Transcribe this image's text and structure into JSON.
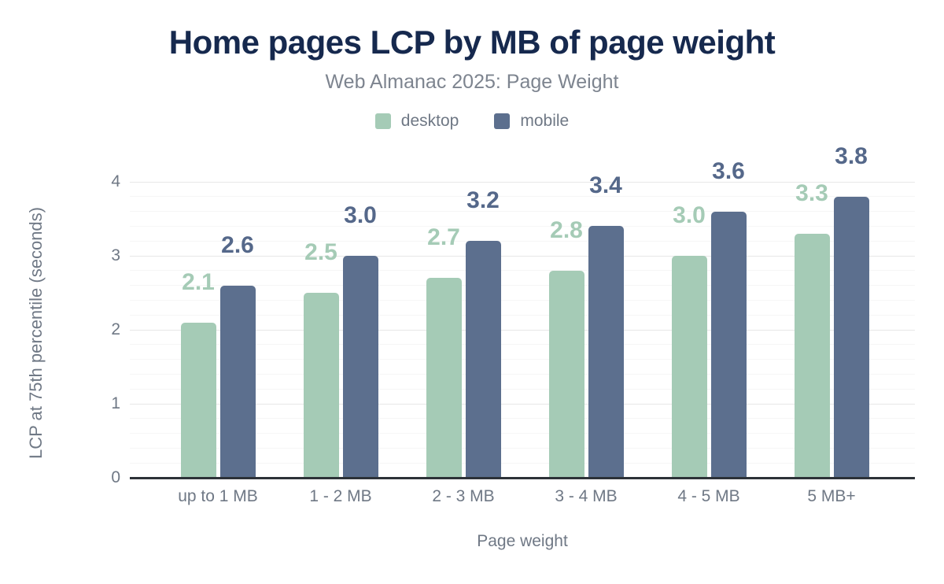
{
  "chart_data": {
    "type": "bar",
    "title": "Home pages LCP by MB of page weight",
    "subtitle": "Web Almanac 2025: Page Weight",
    "xlabel": "Page weight",
    "ylabel": "LCP at 75th percentile (seconds)",
    "categories": [
      "up to 1 MB",
      "1 - 2 MB",
      "2 - 3 MB",
      "3 - 4 MB",
      "4 - 5 MB",
      "5 MB+"
    ],
    "series": [
      {
        "name": "desktop",
        "color": "#a5cbb6",
        "label_color": "#a5cbb6",
        "values": [
          2.1,
          2.5,
          2.7,
          2.8,
          3.0,
          3.3
        ]
      },
      {
        "name": "mobile",
        "color": "#5c6f8e",
        "label_color": "#55688a",
        "values": [
          2.6,
          3.0,
          3.2,
          3.4,
          3.6,
          3.8
        ]
      }
    ],
    "ylim": [
      0,
      4
    ],
    "yticks": [
      0,
      1,
      2,
      3,
      4
    ],
    "grid": {
      "minor_step": 0.2,
      "majors_every": 5,
      "minor_color": "#f6f6f6",
      "major_color": "#e7e7e7"
    },
    "value_label_decimals": 1,
    "legend_position": "top-center",
    "colors": {
      "title": "#16294e",
      "subtitle": "#7d848f",
      "axis_text": "#6f7885",
      "axis_line": "#2d3238",
      "background": "#ffffff"
    }
  }
}
